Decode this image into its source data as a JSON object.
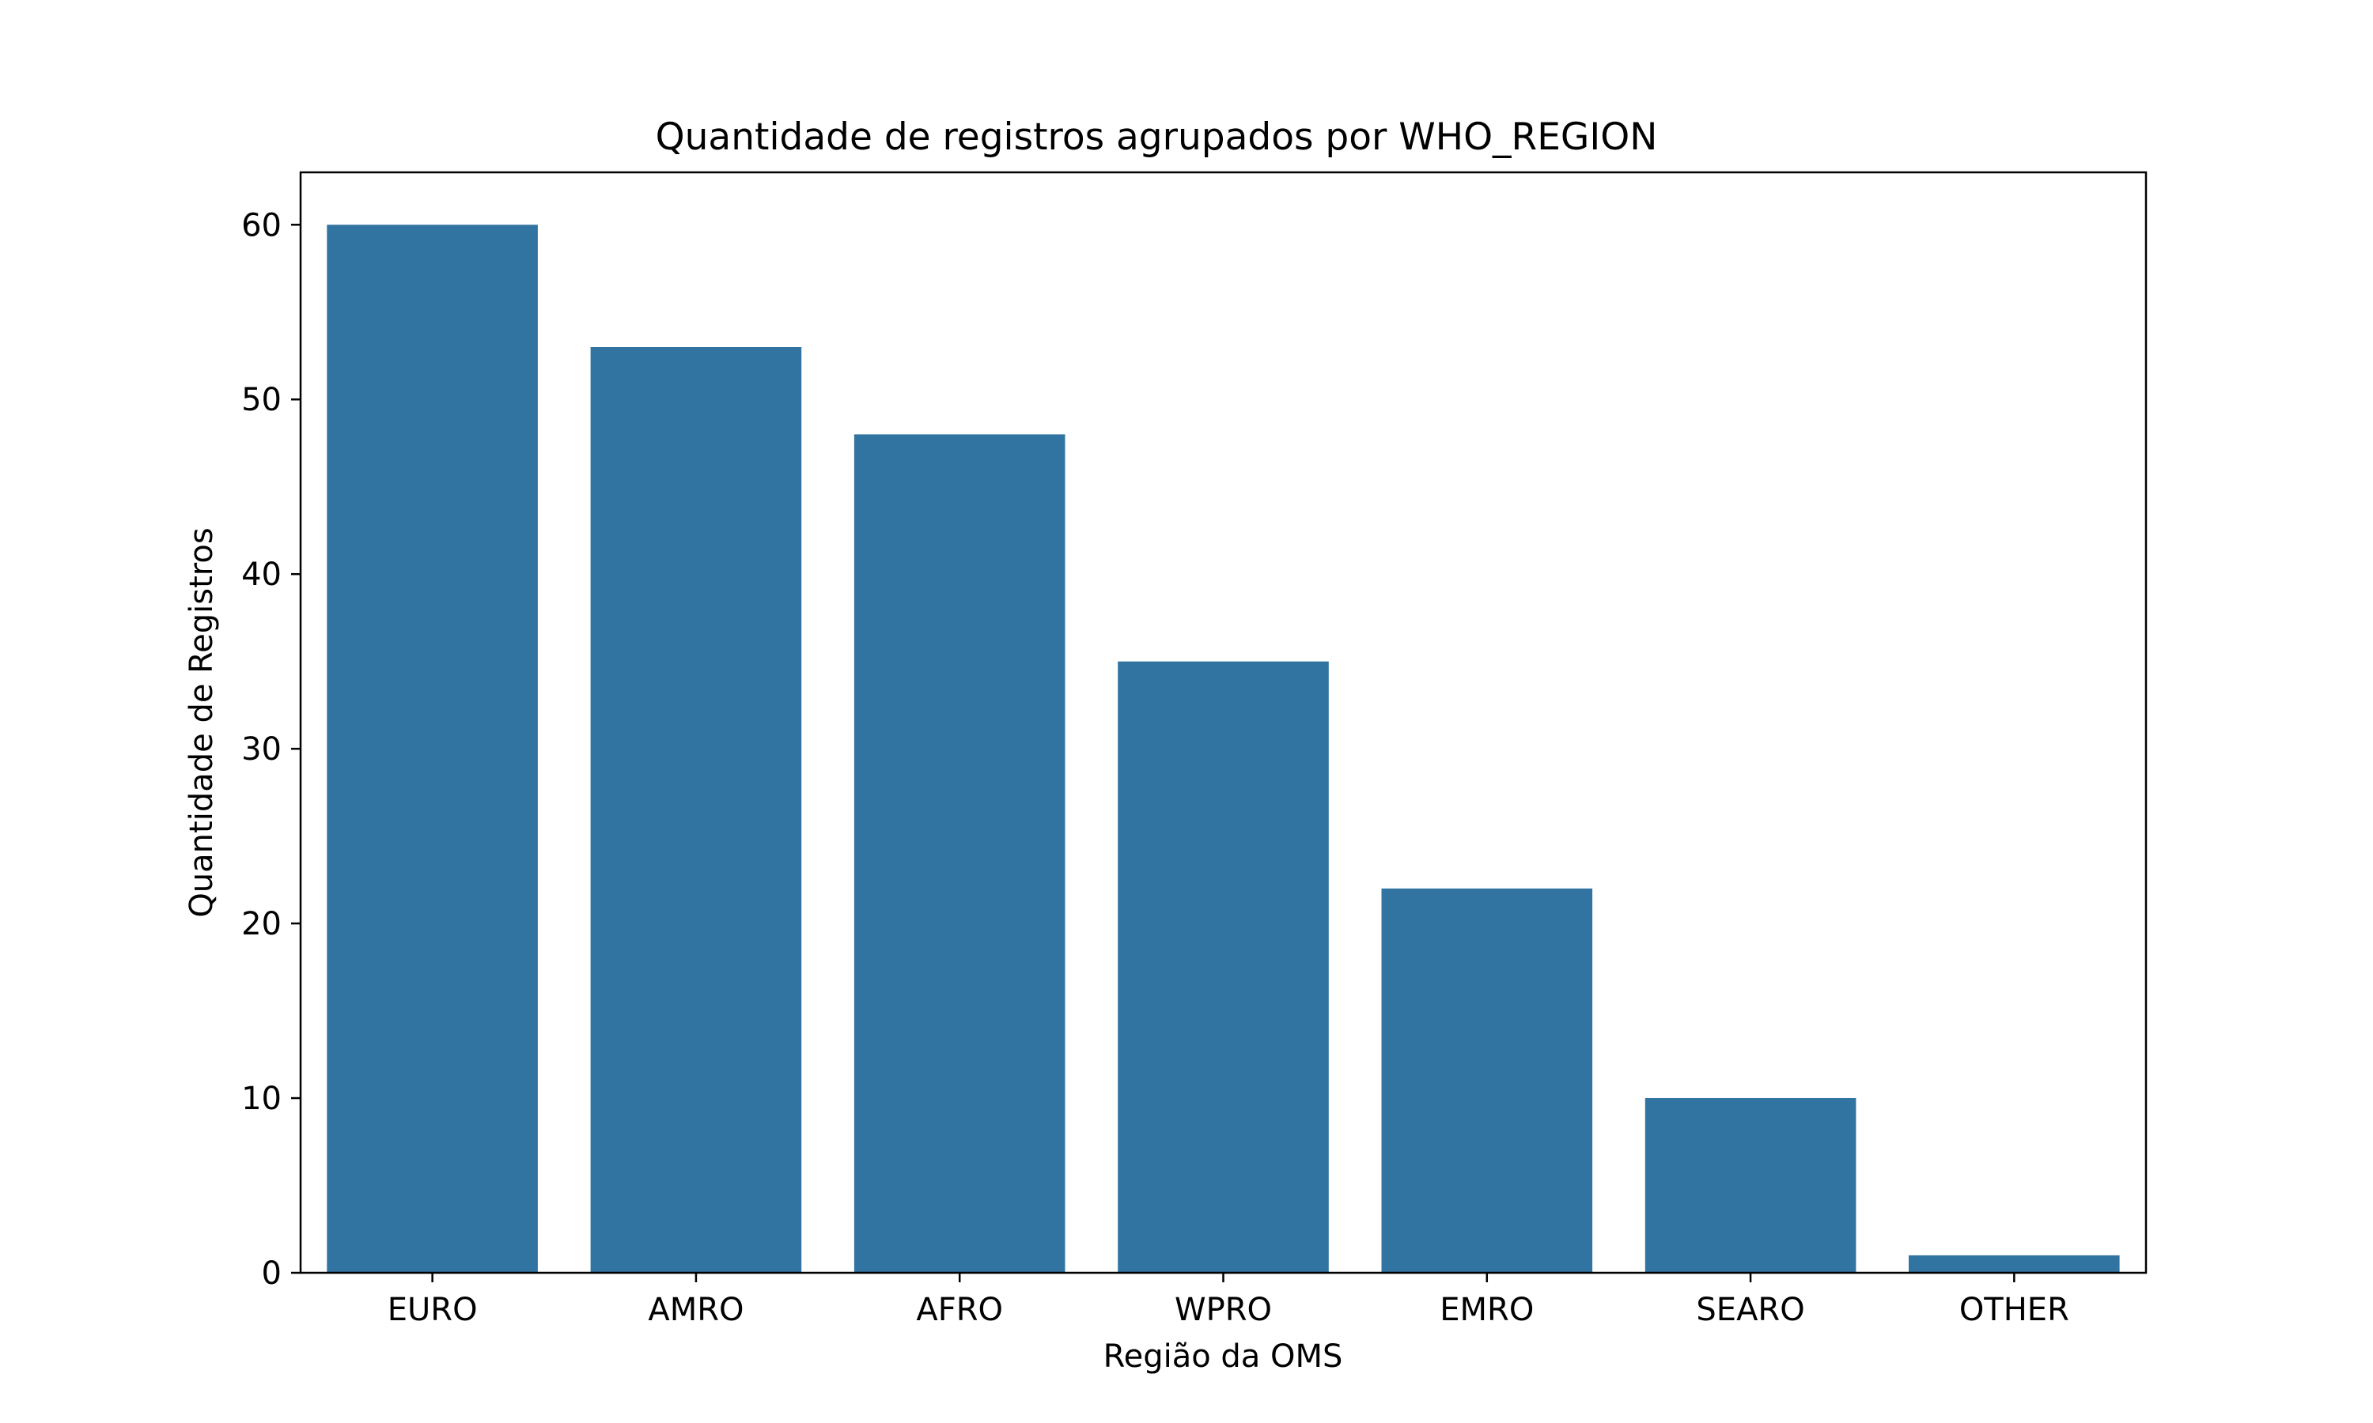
{
  "chart_data": {
    "type": "bar",
    "title": "Quantidade de registros agrupados por WHO_REGION",
    "xlabel": "Região da OMS",
    "ylabel": "Quantidade de Registros",
    "categories": [
      "EURO",
      "AMRO",
      "AFRO",
      "WPRO",
      "EMRO",
      "SEARO",
      "OTHER"
    ],
    "values": [
      60,
      53,
      48,
      35,
      22,
      10,
      1
    ],
    "ylim": [
      0,
      63
    ],
    "yticks": [
      0,
      10,
      20,
      30,
      40,
      50,
      60
    ],
    "grid": false,
    "bar_color": "#3274a1"
  }
}
